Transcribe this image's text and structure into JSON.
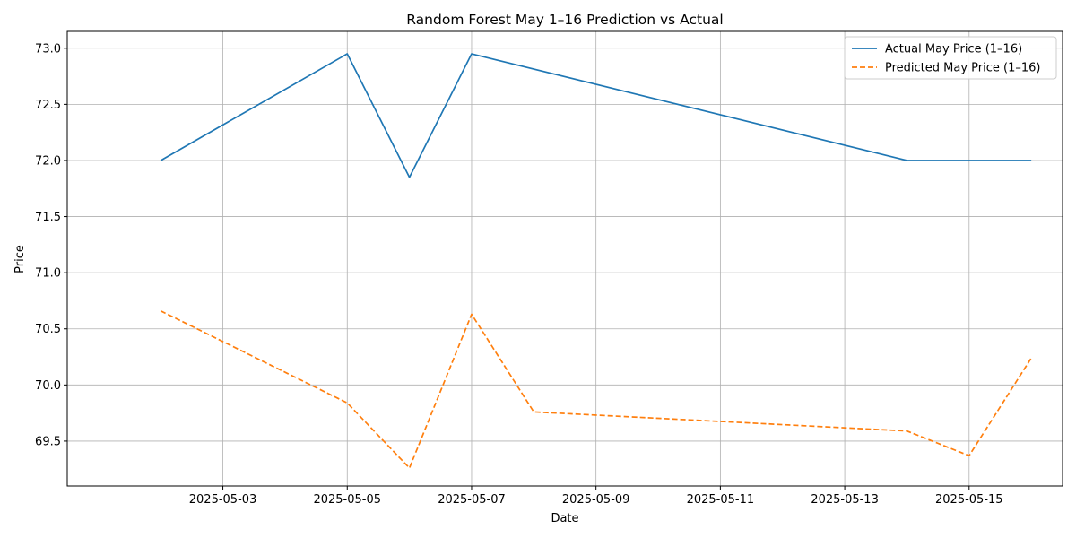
{
  "chart_data": {
    "type": "line",
    "title": "Random Forest May 1–16 Prediction vs Actual",
    "xlabel": "Date",
    "ylabel": "Price",
    "x_ticks": [
      "2025-05-03",
      "2025-05-05",
      "2025-05-07",
      "2025-05-09",
      "2025-05-11",
      "2025-05-13",
      "2025-05-15"
    ],
    "y_ticks": [
      "69.5",
      "70.0",
      "70.5",
      "71.0",
      "71.5",
      "72.0",
      "72.5",
      "73.0"
    ],
    "xlim": [
      "2025-05-01",
      "2025-05-16"
    ],
    "ylim": [
      69.1,
      73.15
    ],
    "grid": true,
    "legend_position": "top-right",
    "series": [
      {
        "name": "Actual May Price (1–16)",
        "color": "#1f77b4",
        "style": "solid",
        "x": [
          "2025-05-02",
          "2025-05-05",
          "2025-05-06",
          "2025-05-07",
          "2025-05-14",
          "2025-05-15",
          "2025-05-16"
        ],
        "values": [
          72.0,
          72.95,
          71.85,
          72.95,
          72.0,
          72.0,
          72.0
        ]
      },
      {
        "name": "Predicted May Price (1–16)",
        "color": "#ff7f0e",
        "style": "dashed",
        "x": [
          "2025-05-02",
          "2025-05-05",
          "2025-05-06",
          "2025-05-07",
          "2025-05-08",
          "2025-05-14",
          "2025-05-15",
          "2025-05-16"
        ],
        "values": [
          70.66,
          69.84,
          69.26,
          70.63,
          69.76,
          69.59,
          69.37,
          70.24
        ]
      }
    ]
  }
}
